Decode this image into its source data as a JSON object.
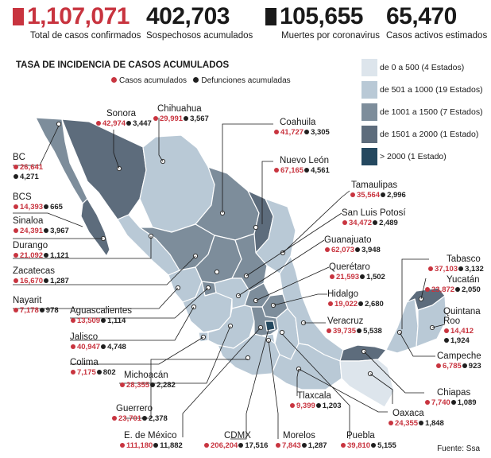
{
  "stats": [
    {
      "value": "1,107,071",
      "label": "Total de casos confirmados",
      "color": "#c8343f",
      "square": true
    },
    {
      "value": "402,703",
      "label": "Sospechosos acumulados",
      "color": "#1a1a1a",
      "square": false
    },
    {
      "value": "105,655",
      "label": "Muertes por coronavirus",
      "color": "#1a1a1a",
      "square": true
    },
    {
      "value": "65,470",
      "label": "Casos activos estimados",
      "color": "#1a1a1a",
      "square": false
    }
  ],
  "title": "TASA DE INCIDENCIA DE CASOS ACUMULADOS",
  "point_legend": {
    "cases": "Casos acumulados",
    "deaths": "Defunciones acumuladas"
  },
  "legend": [
    {
      "label": "de 0 a 500 (4 Estados)",
      "color": "#dde5ec"
    },
    {
      "label": "de 501 a 1000 (19 Estados)",
      "color": "#b9c9d6"
    },
    {
      "label": "de 1001 a 1500 (7 Estados)",
      "color": "#7d8d9b"
    },
    {
      "label": "de 1501 a 2000 (1 Estado)",
      "color": "#5d6c7c"
    },
    {
      "label": "> 2000 (1 Estado)",
      "color": "#24485f"
    }
  ],
  "states": [
    {
      "name": "Sonora",
      "cases": "42,974",
      "deaths": "3,447"
    },
    {
      "name": "Chihuahua",
      "cases": "29,991",
      "deaths": "3,567"
    },
    {
      "name": "Coahuila",
      "cases": "41,727",
      "deaths": "3,305"
    },
    {
      "name": "Nuevo León",
      "cases": "67,165",
      "deaths": "4,561"
    },
    {
      "name": "BC",
      "cases": "26,641",
      "deaths": "4,271"
    },
    {
      "name": "BCS",
      "cases": "14,393",
      "deaths": "665"
    },
    {
      "name": "Sinaloa",
      "cases": "24,391",
      "deaths": "3,967"
    },
    {
      "name": "Durango",
      "cases": "21,092",
      "deaths": "1,121"
    },
    {
      "name": "Zacatecas",
      "cases": "16,670",
      "deaths": "1,287"
    },
    {
      "name": "Nayarit",
      "cases": "7,178",
      "deaths": "978"
    },
    {
      "name": "Aguascalientes",
      "cases": "13,509",
      "deaths": "1,114"
    },
    {
      "name": "Jalisco",
      "cases": "40,947",
      "deaths": "4,748"
    },
    {
      "name": "Colima",
      "cases": "7,175",
      "deaths": "802"
    },
    {
      "name": "Michoacán",
      "cases": "28,355",
      "deaths": "2,282"
    },
    {
      "name": "Guerrero",
      "cases": "23,701",
      "deaths": "2,378"
    },
    {
      "name": "E. de México",
      "cases": "111,180",
      "deaths": "11,882"
    },
    {
      "name": "CDMX",
      "cases": "206,204",
      "deaths": "17,516"
    },
    {
      "name": "Morelos",
      "cases": "7,843",
      "deaths": "1,287"
    },
    {
      "name": "Puebla",
      "cases": "39,810",
      "deaths": "5,155"
    },
    {
      "name": "Tamaulipas",
      "cases": "35,564",
      "deaths": "2,996"
    },
    {
      "name": "San Luis Potosí",
      "cases": "34,472",
      "deaths": "2,489"
    },
    {
      "name": "Guanajuato",
      "cases": "62,073",
      "deaths": "3,948"
    },
    {
      "name": "Querétaro",
      "cases": "21,593",
      "deaths": "1,502"
    },
    {
      "name": "Hidalgo",
      "cases": "19,022",
      "deaths": "2,680"
    },
    {
      "name": "Veracruz",
      "cases": "39,735",
      "deaths": "5,538"
    },
    {
      "name": "Tlaxcala",
      "cases": "9,399",
      "deaths": "1,203"
    },
    {
      "name": "Oaxaca",
      "cases": "24,355",
      "deaths": "1,848"
    },
    {
      "name": "Chiapas",
      "cases": "7,740",
      "deaths": "1,089"
    },
    {
      "name": "Tabasco",
      "cases": "37,103",
      "deaths": "3,132"
    },
    {
      "name": "Yucatán",
      "cases": "23,872",
      "deaths": "2,050"
    },
    {
      "name": "Quintana Roo",
      "cases": "14,412",
      "deaths": "1,924"
    },
    {
      "name": "Campeche",
      "cases": "6,785",
      "deaths": "923"
    }
  ],
  "source": "Fuente: Ssa"
}
